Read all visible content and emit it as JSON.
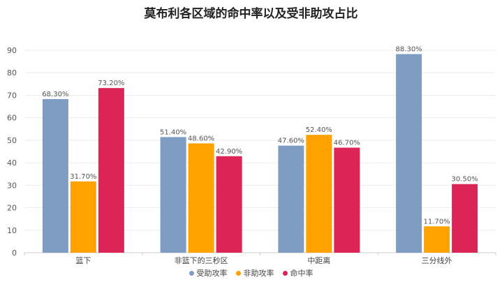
{
  "chart_data": {
    "type": "bar",
    "title": "莫布利各区域的命中率以及受非助攻占比",
    "categories": [
      "篮下",
      "非篮下的三秒区",
      "中距离",
      "三分线外"
    ],
    "series": [
      {
        "name": "受助攻率",
        "color": "#7f9cc2",
        "values": [
          68.3,
          51.4,
          47.6,
          88.3
        ],
        "labels": [
          "68.30%",
          "51.40%",
          "47.60%",
          "88.30%"
        ]
      },
      {
        "name": "非助攻率",
        "color": "#ffa200",
        "values": [
          31.7,
          48.6,
          52.4,
          11.7
        ],
        "labels": [
          "31.70%",
          "48.60%",
          "52.40%",
          "11.70%"
        ]
      },
      {
        "name": "命中率",
        "color": "#dc2457",
        "values": [
          73.2,
          42.9,
          46.7,
          30.5
        ],
        "labels": [
          "73.20%",
          "42.90%",
          "46.70%",
          "30.50%"
        ]
      }
    ],
    "ylim": [
      0,
      90
    ],
    "yticks": [
      "0",
      "10",
      "20",
      "30",
      "40",
      "50",
      "60",
      "70",
      "80",
      "90"
    ],
    "xlabel": "",
    "ylabel": "",
    "grid": true,
    "legend_position": "bottom"
  }
}
